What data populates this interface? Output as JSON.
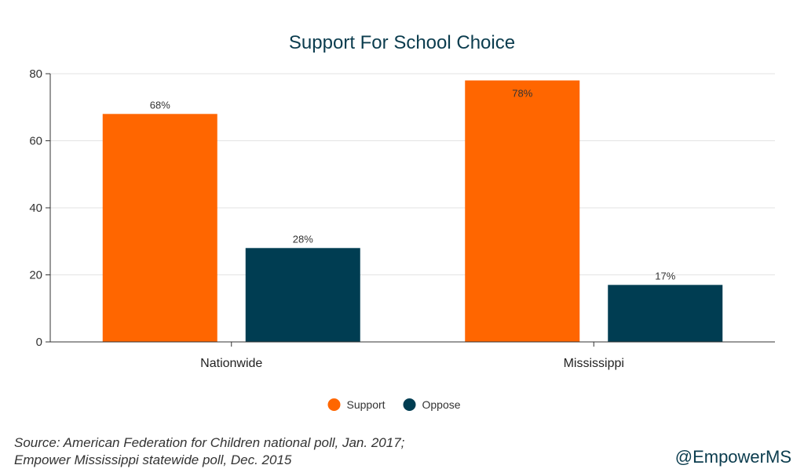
{
  "chart_data": {
    "type": "bar",
    "title": "Support For School Choice",
    "categories": [
      "Nationwide",
      "Mississippi"
    ],
    "series": [
      {
        "name": "Support",
        "values": [
          68,
          78
        ],
        "labels": [
          "68%",
          "78%"
        ],
        "color": "#ff6600"
      },
      {
        "name": "Oppose",
        "values": [
          28,
          17
        ],
        "labels": [
          "28%",
          "17%"
        ],
        "color": "#003d52"
      }
    ],
    "ylim": [
      0,
      80
    ],
    "yticks": [
      0,
      20,
      40,
      60,
      80
    ],
    "grid": true,
    "legend": "bottom",
    "xlabel": "",
    "ylabel": ""
  },
  "footer": {
    "source_line1": "Source: American Federation for Children national poll, Jan. 2017;",
    "source_line2": "Empower Mississippi statewide poll, Dec. 2015",
    "handle": "@EmpowerMS"
  }
}
